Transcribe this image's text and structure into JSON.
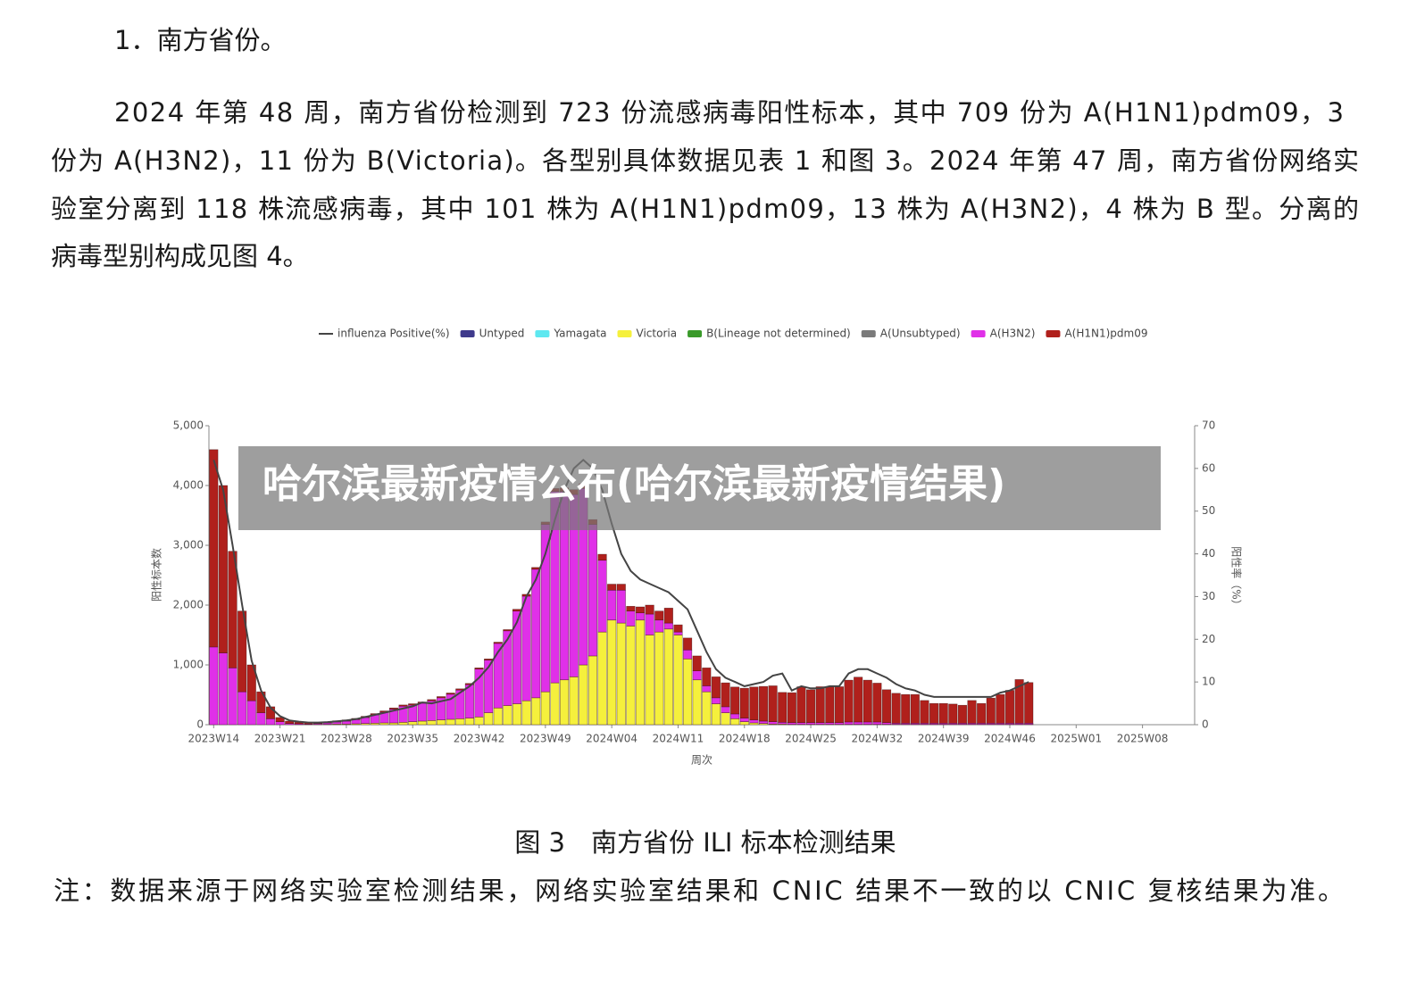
{
  "document": {
    "heading": "1．南方省份。",
    "paragraph_lines": [
      "2024 年第 48 周，南方省份检测到 723 份流感病毒阳性标本，其中 709 份为 A(H1N1)pdm09，3",
      "份为 A(H3N2)，11 份为 B(Victoria)。各型别具体数据见表 1 和图 3。2024 年第 47 周，南方省份网络实",
      "验室分离到 118 株流感病毒，其中 101 株为 A(H1N1)pdm09，13 株为 A(H3N2)，4 株为 B 型。分离的",
      "病毒型别构成见图 4。"
    ],
    "caption": "图 3　南方省份 ILI 标本检测结果",
    "note": "注：数据来源于网络实验室检测结果，网络实验室结果和 CNIC 结果不一致的以 CNIC 复核结果为准。",
    "banner": "哈尔滨最新疫情公布(哈尔滨最新疫情结果)"
  },
  "chart_data": {
    "type": "bar",
    "stacked": true,
    "xlabel": "周次",
    "ylabel": "阳性标本数",
    "y2label": "阳性率（%）",
    "legend": "top",
    "ylim": [
      0,
      5000
    ],
    "yticks": [
      0,
      {
        "value": 1000,
        "label": "1,000"
      },
      {
        "value": 2000,
        "label": "2,000"
      },
      {
        "value": 3000,
        "label": "3,000"
      },
      {
        "value": 4000,
        "label": "4,000"
      },
      {
        "value": 5000,
        "label": "5,000"
      }
    ],
    "y2lim": [
      0,
      70
    ],
    "y2ticks": [
      0,
      10,
      20,
      30,
      40,
      50,
      60,
      70
    ],
    "categories": [
      "2023W14",
      null,
      null,
      null,
      null,
      null,
      null,
      "2023W21",
      null,
      null,
      null,
      null,
      null,
      null,
      "2023W28",
      null,
      null,
      null,
      null,
      null,
      null,
      "2023W35",
      null,
      null,
      null,
      null,
      null,
      null,
      "2023W42",
      null,
      null,
      null,
      null,
      null,
      null,
      "2023W49",
      null,
      null,
      null,
      null,
      null,
      null,
      "2024W04",
      null,
      null,
      null,
      null,
      null,
      null,
      "2024W11",
      null,
      null,
      null,
      null,
      null,
      null,
      "2024W18",
      null,
      null,
      null,
      null,
      null,
      null,
      "2024W25",
      null,
      null,
      null,
      null,
      null,
      null,
      "2024W32",
      null,
      null,
      null,
      null,
      null,
      null,
      "2024W39",
      null,
      null,
      null,
      null,
      null,
      null,
      "2024W46",
      null,
      null,
      null,
      null,
      null,
      null,
      "2025W01",
      null,
      null,
      null,
      null,
      null,
      null,
      "2025W08",
      null,
      null,
      null,
      null,
      null
    ],
    "series": [
      {
        "name": "influenza Positive(%)",
        "type": "line",
        "axis": "y2",
        "color": "#444444",
        "values": [
          62,
          55,
          42,
          28,
          15,
          8,
          4,
          2,
          1,
          0.7,
          0.5,
          0.5,
          0.6,
          0.8,
          1,
          1.3,
          1.8,
          2.3,
          2.8,
          3.3,
          3.8,
          4.3,
          5.2,
          5,
          5.5,
          6,
          7.5,
          9,
          11,
          13.5,
          17,
          20,
          24,
          30,
          34,
          40,
          48,
          55,
          60,
          62,
          60,
          55,
          47,
          40,
          36,
          34,
          33,
          32,
          31,
          29,
          27,
          22,
          17,
          13,
          11,
          10,
          9,
          9.5,
          10,
          11.5,
          12,
          8,
          9,
          8.5,
          8.5,
          9,
          9,
          12,
          13,
          13,
          12,
          11,
          9.5,
          8.5,
          8,
          7,
          6.5,
          6.5,
          6.5,
          6.5,
          6.5,
          6.5,
          6.5,
          7.5,
          8,
          9,
          10,
          null,
          null,
          null,
          null,
          null,
          null,
          null,
          null,
          null,
          null,
          null,
          null,
          null,
          null,
          null,
          null,
          null
        ]
      },
      {
        "name": "Untyped",
        "color": "#3f3a8c",
        "values": [
          0,
          0,
          0,
          0,
          0,
          0,
          0,
          0,
          0,
          0,
          0,
          0,
          0,
          0,
          0,
          0,
          0,
          0,
          0,
          0,
          0,
          0,
          0,
          0,
          0,
          0,
          0,
          0,
          0,
          0,
          0,
          0,
          0,
          0,
          0,
          0,
          0,
          0,
          0,
          0,
          0,
          0,
          0,
          0,
          0,
          0,
          0,
          0,
          0,
          0,
          0,
          0,
          0,
          0,
          0,
          0,
          0,
          0,
          0,
          0,
          0,
          0,
          0,
          0,
          0,
          0,
          0,
          0,
          0,
          0,
          0,
          0,
          0,
          0,
          0,
          0,
          0,
          0,
          0,
          0,
          0,
          0,
          0,
          0,
          0,
          0,
          0,
          null,
          null,
          null,
          null,
          null,
          null,
          null,
          null,
          null,
          null,
          null,
          null,
          null,
          null,
          null,
          null,
          null
        ]
      },
      {
        "name": "Yamagata",
        "color": "#5ee8f0",
        "values": [
          0,
          0,
          0,
          0,
          0,
          0,
          0,
          0,
          0,
          0,
          0,
          0,
          0,
          0,
          0,
          0,
          0,
          0,
          0,
          0,
          0,
          0,
          0,
          0,
          0,
          0,
          0,
          0,
          0,
          0,
          0,
          0,
          0,
          0,
          0,
          0,
          0,
          0,
          0,
          0,
          0,
          0,
          0,
          0,
          0,
          0,
          0,
          0,
          0,
          0,
          0,
          0,
          0,
          0,
          0,
          0,
          0,
          0,
          0,
          0,
          0,
          0,
          0,
          0,
          0,
          0,
          0,
          0,
          0,
          0,
          0,
          0,
          0,
          0,
          0,
          0,
          0,
          0,
          0,
          0,
          0,
          0,
          0,
          0,
          0,
          0,
          0,
          null,
          null,
          null,
          null,
          null,
          null,
          null,
          null,
          null,
          null,
          null,
          null,
          null,
          null,
          null,
          null,
          null
        ]
      },
      {
        "name": "Victoria",
        "color": "#f5f03c",
        "values": [
          0,
          0,
          0,
          0,
          0,
          0,
          0,
          0,
          0,
          0,
          0,
          5,
          5,
          10,
          10,
          15,
          20,
          25,
          30,
          30,
          40,
          50,
          60,
          70,
          80,
          90,
          100,
          110,
          130,
          200,
          280,
          320,
          350,
          400,
          450,
          550,
          700,
          750,
          800,
          1000,
          1150,
          1550,
          1750,
          1700,
          1650,
          1750,
          1500,
          1550,
          1600,
          1500,
          1100,
          750,
          550,
          350,
          200,
          100,
          50,
          30,
          20,
          10,
          10,
          5,
          5,
          5,
          5,
          5,
          5,
          5,
          5,
          5,
          5,
          5,
          5,
          5,
          5,
          5,
          5,
          5,
          5,
          5,
          5,
          5,
          5,
          5,
          5,
          5,
          5,
          null,
          null,
          null,
          null,
          null,
          null,
          null,
          null,
          null,
          null,
          null,
          null,
          null,
          null,
          null,
          null,
          null
        ]
      },
      {
        "name": "B(Lineage not determined)",
        "color": "#3a9a2a",
        "values": [
          0,
          0,
          0,
          0,
          0,
          0,
          0,
          0,
          0,
          0,
          0,
          0,
          0,
          0,
          0,
          0,
          0,
          0,
          0,
          0,
          0,
          0,
          0,
          0,
          0,
          0,
          0,
          0,
          0,
          0,
          0,
          0,
          0,
          0,
          0,
          0,
          0,
          0,
          0,
          0,
          0,
          0,
          0,
          0,
          0,
          0,
          0,
          0,
          0,
          0,
          0,
          0,
          0,
          0,
          0,
          0,
          0,
          0,
          0,
          0,
          0,
          0,
          0,
          0,
          0,
          0,
          0,
          0,
          0,
          0,
          0,
          0,
          0,
          0,
          0,
          0,
          0,
          0,
          0,
          0,
          0,
          0,
          0,
          0,
          0,
          0,
          0,
          null,
          null,
          null,
          null,
          null,
          null,
          null,
          null,
          null,
          null,
          null,
          null,
          null,
          null,
          null,
          null,
          null
        ]
      },
      {
        "name": "A(Unsubtyped)",
        "color": "#7a7a7a",
        "values": [
          0,
          0,
          0,
          0,
          0,
          0,
          0,
          0,
          0,
          0,
          0,
          0,
          0,
          0,
          0,
          0,
          0,
          0,
          0,
          0,
          0,
          0,
          0,
          0,
          0,
          0,
          0,
          0,
          0,
          0,
          0,
          0,
          0,
          0,
          0,
          0,
          0,
          0,
          0,
          0,
          0,
          0,
          0,
          0,
          0,
          0,
          0,
          0,
          0,
          0,
          0,
          0,
          0,
          0,
          0,
          0,
          0,
          0,
          0,
          0,
          0,
          0,
          0,
          0,
          0,
          0,
          0,
          0,
          0,
          0,
          0,
          0,
          0,
          0,
          0,
          0,
          0,
          0,
          0,
          0,
          0,
          0,
          0,
          0,
          0,
          0,
          0,
          null,
          null,
          null,
          null,
          null,
          null,
          null,
          null,
          null,
          null,
          null,
          null,
          null,
          null,
          null,
          null,
          null
        ]
      },
      {
        "name": "A(H3N2)",
        "color": "#e030e8",
        "values": [
          1300,
          1200,
          950,
          550,
          400,
          200,
          100,
          50,
          20,
          15,
          10,
          15,
          25,
          35,
          50,
          70,
          100,
          140,
          180,
          230,
          270,
          280,
          300,
          330,
          370,
          420,
          480,
          560,
          800,
          880,
          1080,
          1250,
          1550,
          1750,
          2150,
          2800,
          3200,
          3150,
          3050,
          2950,
          2200,
          1200,
          500,
          550,
          250,
          120,
          350,
          200,
          100,
          50,
          150,
          150,
          100,
          100,
          100,
          80,
          60,
          50,
          40,
          40,
          30,
          30,
          30,
          30,
          30,
          30,
          30,
          40,
          40,
          40,
          40,
          30,
          20,
          20,
          20,
          20,
          20,
          20,
          20,
          20,
          20,
          20,
          20,
          20,
          20,
          20,
          20,
          null,
          null,
          null,
          null,
          null,
          null,
          null,
          null,
          null,
          null,
          null,
          null,
          null,
          null,
          null,
          null,
          null
        ]
      },
      {
        "name": "A(H1N1)pdm09",
        "color": "#b0201c",
        "values": [
          3300,
          2800,
          1950,
          1350,
          600,
          350,
          200,
          70,
          40,
          25,
          20,
          15,
          15,
          20,
          20,
          20,
          20,
          20,
          20,
          20,
          20,
          20,
          20,
          20,
          20,
          20,
          20,
          20,
          20,
          20,
          20,
          20,
          30,
          30,
          30,
          40,
          50,
          60,
          80,
          80,
          80,
          100,
          100,
          100,
          80,
          100,
          150,
          150,
          250,
          120,
          200,
          250,
          300,
          350,
          400,
          450,
          500,
          550,
          580,
          600,
          500,
          500,
          600,
          550,
          600,
          600,
          600,
          700,
          750,
          700,
          650,
          550,
          500,
          480,
          480,
          380,
          330,
          330,
          320,
          300,
          380,
          330,
          420,
          480,
          550,
          730,
          680,
          null,
          null,
          null,
          null,
          null,
          null,
          null,
          null,
          null,
          null,
          null,
          null,
          null,
          null,
          null,
          null,
          null
        ]
      }
    ]
  }
}
